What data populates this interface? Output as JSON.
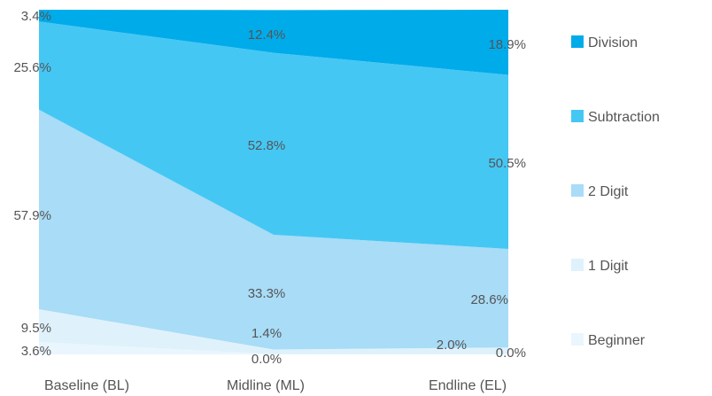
{
  "chart_data": {
    "type": "area",
    "stacked": true,
    "categories": [
      "Baseline (BL)",
      "Midline (ML)",
      "Endline (EL)"
    ],
    "ylim": [
      0,
      100
    ],
    "grid": false,
    "legend": {
      "position": "right"
    },
    "series": [
      {
        "name": "Beginner",
        "values": [
          3.6,
          0.0,
          0.0
        ],
        "labels": [
          "3.6%",
          "0.0%",
          "0.0%"
        ],
        "color": "#eaf6fd"
      },
      {
        "name": "1 Digit",
        "values": [
          9.5,
          1.4,
          2.0
        ],
        "labels": [
          "9.5%",
          "1.4%",
          "2.0%"
        ],
        "color": "#dff2fc"
      },
      {
        "name": "2 Digit",
        "values": [
          57.9,
          33.3,
          28.6
        ],
        "labels": [
          "57.9%",
          "33.3%",
          "28.6%"
        ],
        "color": "#a8dcf7"
      },
      {
        "name": "Subtraction",
        "values": [
          25.6,
          52.8,
          50.5
        ],
        "labels": [
          "25.6%",
          "52.8%",
          "50.5%"
        ],
        "color": "#45c7f4"
      },
      {
        "name": "Division",
        "values": [
          3.4,
          12.4,
          18.9
        ],
        "labels": [
          "3.4%",
          "12.4%",
          "18.9%"
        ],
        "color": "#00abea"
      }
    ]
  }
}
